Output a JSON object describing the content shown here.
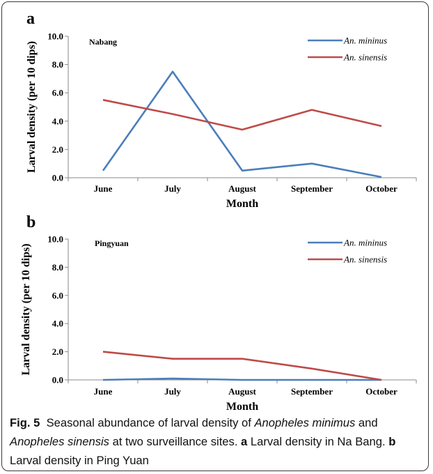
{
  "chart_data": [
    {
      "type": "line",
      "panel_label": "a",
      "site": "Nabang",
      "categories": [
        "June",
        "July",
        "August",
        "September",
        "October"
      ],
      "series": [
        {
          "name": "An. mininus",
          "color": "#4a7ebb",
          "values": [
            0.5,
            7.5,
            0.5,
            1.0,
            0.05
          ]
        },
        {
          "name": "An. sinensis",
          "color": "#be4b48",
          "values": [
            5.5,
            4.5,
            3.4,
            4.8,
            3.65
          ]
        }
      ],
      "xlabel": "Month",
      "ylabel": "Larval density (per 10 dips)",
      "ylim": [
        0,
        10
      ],
      "yticks": [
        "0.0",
        "2.0",
        "4.0",
        "6.0",
        "8.0",
        "10.0"
      ],
      "grid": false,
      "legend": "top-right"
    },
    {
      "type": "line",
      "panel_label": "b",
      "site": "Pingyuan",
      "categories": [
        "June",
        "July",
        "August",
        "September",
        "October"
      ],
      "series": [
        {
          "name": "An. mininus",
          "color": "#4a7ebb",
          "values": [
            0.0,
            0.1,
            0.0,
            0.0,
            0.0
          ]
        },
        {
          "name": "An. sinensis",
          "color": "#be4b48",
          "values": [
            2.0,
            1.5,
            1.5,
            0.8,
            0.0
          ]
        }
      ],
      "xlabel": "Month",
      "ylabel": "Larval density (per 10 dips)",
      "ylim": [
        0,
        10
      ],
      "yticks": [
        "0.0",
        "2.0",
        "4.0",
        "6.0",
        "8.0",
        "10.0"
      ],
      "grid": false,
      "legend": "top-right"
    }
  ],
  "caption": {
    "fig_label": "Fig. 5",
    "text_1": "Seasonal abundance of larval density of ",
    "species_1": "Anopheles minimus",
    "text_2": " and ",
    "species_2": "Anopheles sinensis",
    "text_3": " at two surveillance sites. ",
    "label_a": "a",
    "text_a": " Larval density in Na Bang. ",
    "label_b": "b",
    "text_b": " Larval density in Ping Yuan"
  }
}
